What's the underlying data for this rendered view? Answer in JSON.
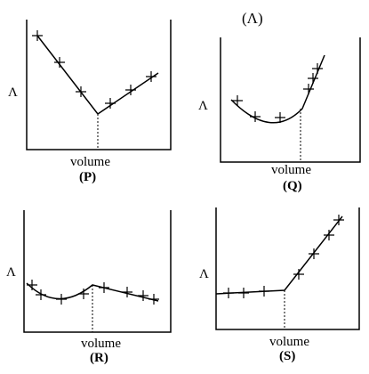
{
  "header": {
    "title": "(Λ)"
  },
  "panels": [
    {
      "id": "P",
      "y_label": "Λ",
      "x_label": "volume",
      "caption": "(P)"
    },
    {
      "id": "Q",
      "y_label": "Λ",
      "x_label": "volume",
      "caption": "(Q)"
    },
    {
      "id": "R",
      "y_label": "Λ",
      "x_label": "volume",
      "caption": "(R)"
    },
    {
      "id": "S",
      "y_label": "Λ",
      "x_label": "volume",
      "caption": "(S)"
    }
  ],
  "colors": {
    "ink": "#000000",
    "background": "#ffffff"
  }
}
